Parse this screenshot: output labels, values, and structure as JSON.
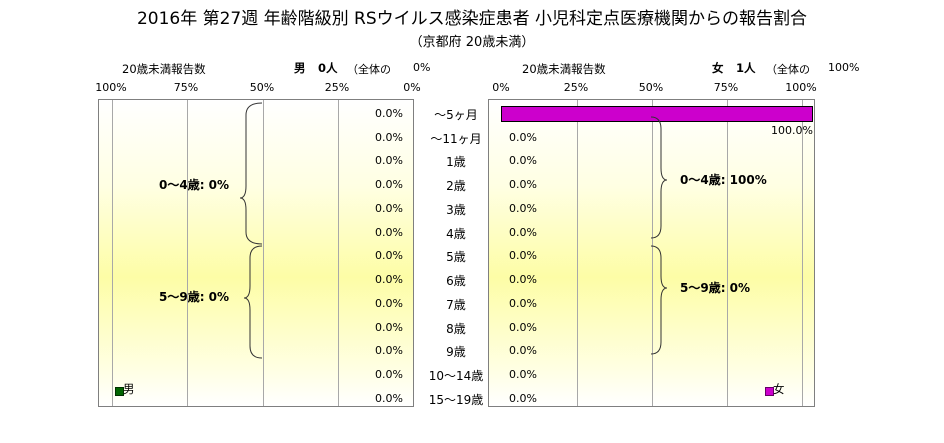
{
  "title": "2016年 第27週 年齢階級別 RSウイルス感染症患者 小児科定点医療機関からの報告割合",
  "subtitle": "（京都府 20歳未満）",
  "male": {
    "axis_title": "20歳未満報告数",
    "label": "男",
    "count": "0人",
    "share_label": "（全体の",
    "share_value": "0%",
    "ticks": [
      "100%",
      "75%",
      "50%",
      "25%",
      "0%"
    ],
    "group1": "0～4歳: 0%",
    "group2": "5～9歳: 0%",
    "legend": "男",
    "color": "#006400"
  },
  "female": {
    "axis_title": "20歳未満報告数",
    "label": "女",
    "count": "1人",
    "share_label": "（全体の",
    "share_value": "100%",
    "ticks": [
      "0%",
      "25%",
      "50%",
      "75%",
      "100%"
    ],
    "group1": "0～4歳: 100%",
    "group2": "5～9歳: 0%",
    "legend": "女",
    "color": "#cc00cc"
  },
  "chart_data": {
    "type": "bar",
    "orientation": "horizontal",
    "categories": [
      "～5ヶ月",
      "～11ヶ月",
      "1歳",
      "2歳",
      "3歳",
      "4歳",
      "5歳",
      "6歳",
      "7歳",
      "8歳",
      "9歳",
      "10～14歳",
      "15～19歳"
    ],
    "series": [
      {
        "name": "男",
        "values": [
          0,
          0,
          0,
          0,
          0,
          0,
          0,
          0,
          0,
          0,
          0,
          0,
          0
        ],
        "labels": [
          "0.0%",
          "0.0%",
          "0.0%",
          "0.0%",
          "0.0%",
          "0.0%",
          "0.0%",
          "0.0%",
          "0.0%",
          "0.0%",
          "0.0%",
          "0.0%",
          "0.0%"
        ]
      },
      {
        "name": "女",
        "values": [
          100,
          0,
          0,
          0,
          0,
          0,
          0,
          0,
          0,
          0,
          0,
          0,
          0
        ],
        "labels": [
          "100.0%",
          "0.0%",
          "0.0%",
          "0.0%",
          "0.0%",
          "0.0%",
          "0.0%",
          "0.0%",
          "0.0%",
          "0.0%",
          "0.0%",
          "0.0%",
          "0.0%"
        ]
      }
    ],
    "xlim": [
      0,
      100
    ],
    "grid": true
  }
}
